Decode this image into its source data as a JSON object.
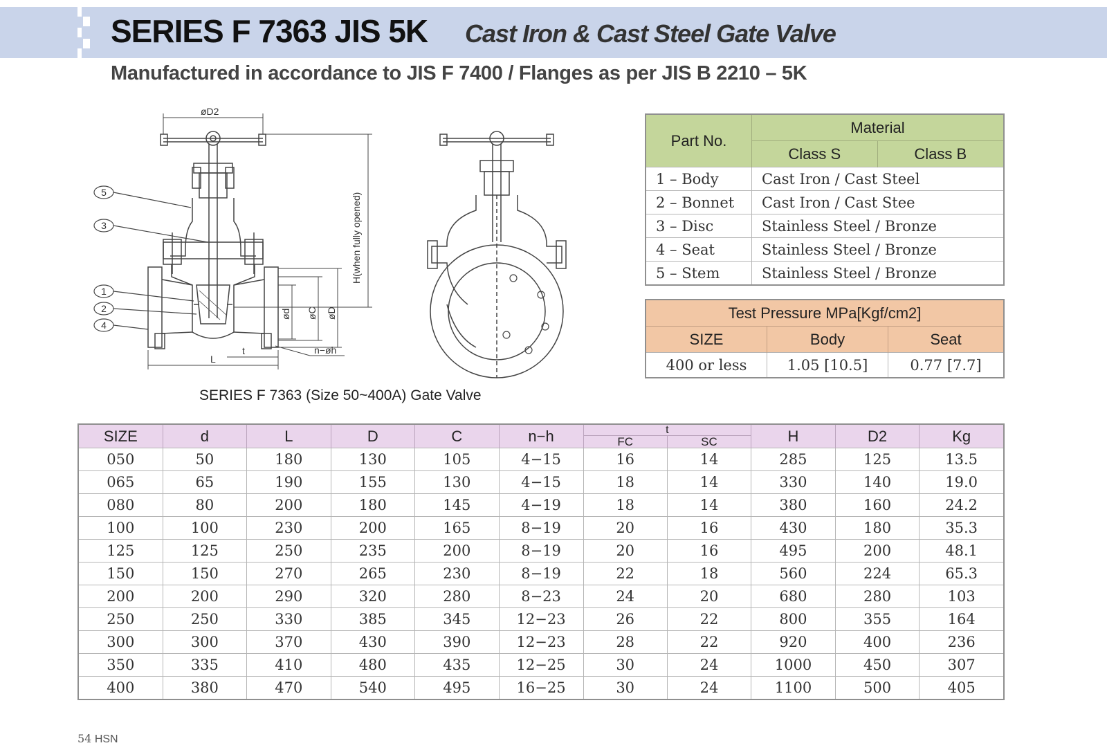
{
  "header": {
    "title": "SERIES F 7363  JIS 5K",
    "subtitle": "Cast Iron & Cast Steel Gate Valve"
  },
  "subheading": "Manufactured in accordance to JIS F 7400   /   Flanges as per JIS B 2210 – 5K",
  "drawing": {
    "labels": {
      "d2": "øD2",
      "h": "H(when fully opened)",
      "d": "ød",
      "c": "øC",
      "dd": "øD",
      "l": "L",
      "t": "t",
      "nh": "n−øh"
    },
    "callouts": [
      "1",
      "2",
      "3",
      "4",
      "5"
    ],
    "caption": "SERIES F 7363 (Size 50~400A) Gate Valve"
  },
  "material_table": {
    "part_no_header": "Part No.",
    "material_header": "Material",
    "class_s_header": "Class S",
    "class_b_header": "Class B",
    "rows": [
      {
        "part": "1 – Body",
        "material": "Cast Iron  /  Cast Steel"
      },
      {
        "part": "2 – Bonnet",
        "material": "Cast Iron  /  Cast Stee"
      },
      {
        "part": "3 – Disc",
        "material": "Stainless Steel  / Bronze"
      },
      {
        "part": "4 – Seat",
        "material": "Stainless Steel  / Bronze"
      },
      {
        "part": "5 – Stem",
        "material": "Stainless Steel  / Bronze"
      }
    ]
  },
  "test_pressure": {
    "title": "Test Pressure MPa[Kgf/cm2]",
    "headers": [
      "SIZE",
      "Body",
      "Seat"
    ],
    "row": [
      "400 or less",
      "1.05 [10.5]",
      "0.77 [7.7]"
    ]
  },
  "dimension_table": {
    "headers": [
      "SIZE",
      "d",
      "L",
      "D",
      "C",
      "n−h",
      "t",
      "H",
      "D2",
      "Kg"
    ],
    "t_sub": [
      "FC",
      "SC"
    ],
    "rows": [
      [
        "050",
        "50",
        "180",
        "130",
        "105",
        "4−15",
        "16",
        "14",
        "285",
        "125",
        "13.5"
      ],
      [
        "065",
        "65",
        "190",
        "155",
        "130",
        "4−15",
        "18",
        "14",
        "330",
        "140",
        "19.0"
      ],
      [
        "080",
        "80",
        "200",
        "180",
        "145",
        "4−19",
        "18",
        "14",
        "380",
        "160",
        "24.2"
      ],
      [
        "100",
        "100",
        "230",
        "200",
        "165",
        "8−19",
        "20",
        "16",
        "430",
        "180",
        "35.3"
      ],
      [
        "125",
        "125",
        "250",
        "235",
        "200",
        "8−19",
        "20",
        "16",
        "495",
        "200",
        "48.1"
      ],
      [
        "150",
        "150",
        "270",
        "265",
        "230",
        "8−19",
        "22",
        "18",
        "560",
        "224",
        "65.3"
      ],
      [
        "200",
        "200",
        "290",
        "320",
        "280",
        "8−23",
        "24",
        "20",
        "680",
        "280",
        "103"
      ],
      [
        "250",
        "250",
        "330",
        "385",
        "345",
        "12−23",
        "26",
        "22",
        "800",
        "355",
        "164"
      ],
      [
        "300",
        "300",
        "370",
        "430",
        "390",
        "12−23",
        "28",
        "22",
        "920",
        "400",
        "236"
      ],
      [
        "350",
        "335",
        "410",
        "480",
        "435",
        "12−25",
        "30",
        "24",
        "1000",
        "450",
        "307"
      ],
      [
        "400",
        "380",
        "470",
        "540",
        "495",
        "16−25",
        "30",
        "24",
        "1100",
        "500",
        "405"
      ]
    ]
  },
  "footer": {
    "page": "54",
    "brand": "HSN"
  }
}
